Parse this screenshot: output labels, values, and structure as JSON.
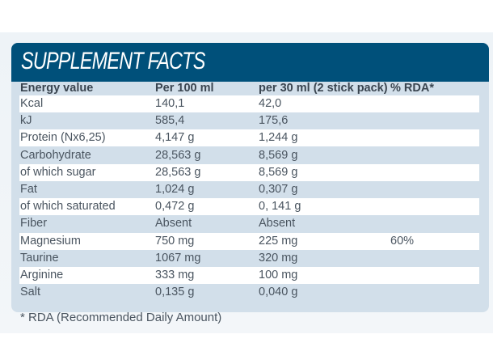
{
  "title": "SUPPLEMENT FACTS",
  "headers": [
    "Energy value",
    "Per 100 ml",
    "per 30 ml (2 stick pack)",
    "% RDA*"
  ],
  "rows": [
    [
      "Kcal",
      "140,1",
      "42,0",
      ""
    ],
    [
      "kJ",
      "585,4",
      "175,6",
      ""
    ],
    [
      "Protein (Nx6,25)",
      "4,147 g",
      "1,244 g",
      ""
    ],
    [
      "Carbohydrate",
      "28,563 g",
      "8,569 g",
      ""
    ],
    [
      "of which sugar",
      "28,563 g",
      "8,569 g",
      ""
    ],
    [
      "Fat",
      "1,024 g",
      "0,307 g",
      ""
    ],
    [
      "of which saturated",
      "0,472 g",
      "0, 141 g",
      ""
    ],
    [
      "Fiber",
      "Absent",
      "Absent",
      ""
    ],
    [
      "Magnesium",
      "750 mg",
      "225 mg",
      "60%"
    ],
    [
      "Taurine",
      "1067 mg",
      "320 mg",
      ""
    ],
    [
      "Arginine",
      "333 mg",
      "100 mg",
      ""
    ],
    [
      "Salt",
      "0,135 g",
      "0,040 g",
      ""
    ]
  ],
  "footnote": "* RDA (Recommended Daily Amount)"
}
